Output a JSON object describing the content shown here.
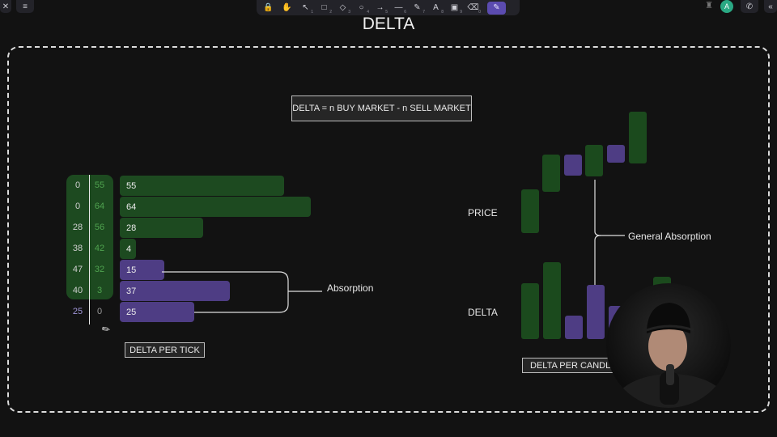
{
  "window": {
    "title": "DELTA",
    "avatar_letter": "A"
  },
  "toolbar": {
    "tools": [
      {
        "name": "lock-tool",
        "glyph": "🔒",
        "key": ""
      },
      {
        "name": "hand-tool",
        "glyph": "✋",
        "key": ""
      },
      {
        "name": "select-tool",
        "glyph": "↖",
        "key": "1"
      },
      {
        "name": "rectangle-tool",
        "glyph": "□",
        "key": "2"
      },
      {
        "name": "diamond-tool",
        "glyph": "◇",
        "key": "3"
      },
      {
        "name": "ellipse-tool",
        "glyph": "○",
        "key": "4"
      },
      {
        "name": "arrow-tool",
        "glyph": "→",
        "key": "5"
      },
      {
        "name": "line-tool",
        "glyph": "—",
        "key": "6"
      },
      {
        "name": "pencil-tool",
        "glyph": "✎",
        "key": "7"
      },
      {
        "name": "text-tool",
        "glyph": "A",
        "key": "8"
      },
      {
        "name": "image-tool",
        "glyph": "▣",
        "key": "9"
      },
      {
        "name": "eraser-tool",
        "glyph": "⌫",
        "key": "0"
      },
      {
        "name": "laser-tool",
        "glyph": "✎",
        "key": "",
        "active": true
      }
    ]
  },
  "formula": "DELTA = n BUY MARKET - n SELL MARKET",
  "ticks": {
    "bid": [
      "0",
      "0",
      "28",
      "38",
      "47",
      "40",
      "25"
    ],
    "ask": [
      "55",
      "64",
      "56",
      "42",
      "32",
      "3",
      "0"
    ],
    "delta": [
      {
        "value": "55",
        "level": 55,
        "color": "green"
      },
      {
        "value": "64",
        "level": 64,
        "color": "green"
      },
      {
        "value": "28",
        "level": 28,
        "color": "green"
      },
      {
        "value": "4",
        "level": 4,
        "color": "green"
      },
      {
        "value": "15",
        "level": 15,
        "color": "purple"
      },
      {
        "value": "37",
        "level": 37,
        "color": "purple"
      },
      {
        "value": "25",
        "level": 25,
        "color": "purple"
      }
    ],
    "caption": "DELTA PER TICK"
  },
  "annotations": {
    "absorption": "Absorption",
    "general_absorption": "General Absorption",
    "price": "PRICE",
    "delta": "DELTA",
    "candle_caption": "DELTA PER CANDLE"
  },
  "colors": {
    "green": "#1d4a20",
    "purple": "#4e3d84",
    "accent": "#5b4bb0"
  }
}
